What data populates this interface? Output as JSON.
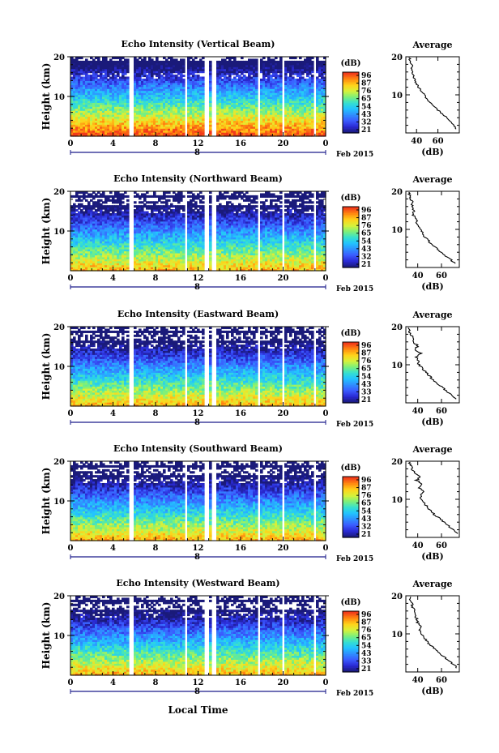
{
  "colors": {
    "colormap": [
      "#1a1a7a",
      "#2a2ad4",
      "#3b5bff",
      "#2f8fff",
      "#22c3ff",
      "#36e0d0",
      "#7cf07a",
      "#d8f23a",
      "#ffd21a",
      "#ff8a10",
      "#f23a1a"
    ],
    "axis": "#000000",
    "timeline": "#1a1a8a",
    "background": "#ffffff"
  },
  "shared": {
    "colorbar_unit": "(dB)",
    "colorbar_ticks_default": [
      "96",
      "87",
      "76",
      "65",
      "54",
      "43",
      "32",
      "21"
    ],
    "colorbar_ticks_east": [
      "96",
      "87",
      "76",
      "65",
      "54",
      "43",
      "33",
      "21"
    ],
    "colorbar_ticks_west": [
      "96",
      "87",
      "76",
      "65",
      "54",
      "43",
      "33",
      "21"
    ],
    "x_ticks": [
      "0",
      "4",
      "8",
      "12",
      "16",
      "20",
      "0"
    ],
    "y_ticks": [
      "20",
      "10"
    ],
    "date_axis_value": "8",
    "date_label": "Feb 2015",
    "x_axis_label": "Local Time",
    "y_axis_label": "Height (km)",
    "avg_title": "Average",
    "avg_xlabel": "(dB)",
    "avg_x_ticks_top": [
      "40",
      "60"
    ],
    "avg_x_ticks_rest": [
      "40",
      "60"
    ]
  },
  "chart_data": [
    {
      "type": "heatmap",
      "title": "Echo Intensity (Vertical Beam)",
      "xlabel": "",
      "ylabel": "Height (km)",
      "x_range_hours": [
        0,
        24
      ],
      "y_range_km": [
        0,
        20
      ],
      "colorbar": {
        "label": "(dB)",
        "ticks": [
          96,
          87,
          76,
          65,
          54,
          43,
          32,
          21
        ]
      },
      "data_gaps_hours": [
        5.5,
        5.9,
        10.7,
        10.9,
        12.6,
        13.0,
        13.3,
        13.6,
        17.6,
        17.9,
        19.9,
        20.2,
        22.8,
        23.0
      ],
      "average_profile": {
        "title": "Average",
        "xlabel": "(dB)",
        "x_range": [
          30,
          80
        ],
        "height_km": [
          1,
          2,
          3,
          4,
          5,
          6,
          7,
          8,
          9,
          10,
          11,
          12,
          13,
          14,
          15,
          16,
          17,
          18,
          19,
          20
        ],
        "db": [
          78,
          75,
          72,
          68,
          64,
          60,
          57,
          53,
          50,
          47,
          45,
          42,
          40,
          38,
          37,
          36,
          35,
          36,
          34,
          33
        ]
      }
    },
    {
      "type": "heatmap",
      "title": "Echo Intensity (Northward Beam)",
      "xlabel": "",
      "ylabel": "Height (km)",
      "x_range_hours": [
        0,
        24
      ],
      "y_range_km": [
        0,
        20
      ],
      "colorbar": {
        "label": "(dB)",
        "ticks": [
          96,
          87,
          76,
          65,
          54,
          43,
          32,
          21
        ]
      },
      "data_gaps_hours": [
        5.5,
        5.9,
        10.7,
        10.9,
        12.6,
        13.0,
        13.3,
        13.6,
        17.6,
        17.9,
        19.9,
        20.2,
        22.8,
        23.0
      ],
      "average_profile": {
        "title": "Average",
        "xlabel": "(dB)",
        "x_range": [
          30,
          75
        ],
        "height_km": [
          1,
          2,
          3,
          4,
          5,
          6,
          7,
          8,
          9,
          10,
          11,
          12,
          13,
          14,
          15,
          16,
          17,
          18,
          19,
          20
        ],
        "db": [
          72,
          68,
          64,
          60,
          56,
          52,
          49,
          46,
          44,
          42,
          40,
          39,
          38,
          36,
          37,
          35,
          36,
          34,
          33,
          32
        ]
      }
    },
    {
      "type": "heatmap",
      "title": "Echo Intensity (Eastward Beam)",
      "xlabel": "",
      "ylabel": "Height (km)",
      "x_range_hours": [
        0,
        24
      ],
      "y_range_km": [
        0,
        20
      ],
      "colorbar": {
        "label": "(dB)",
        "ticks": [
          96,
          87,
          76,
          65,
          54,
          43,
          33,
          21
        ]
      },
      "data_gaps_hours": [
        5.5,
        5.9,
        10.7,
        10.9,
        12.6,
        13.0,
        13.3,
        13.6,
        17.6,
        17.9,
        19.9,
        20.2,
        22.8,
        23.0
      ],
      "average_profile": {
        "title": "Average",
        "xlabel": "(dB)",
        "x_range": [
          30,
          75
        ],
        "height_km": [
          1,
          2,
          3,
          4,
          5,
          6,
          7,
          8,
          9,
          10,
          11,
          12,
          13,
          14,
          15,
          16,
          17,
          18,
          19,
          20
        ],
        "db": [
          73,
          69,
          65,
          61,
          57,
          53,
          50,
          47,
          44,
          41,
          40,
          39,
          43,
          38,
          40,
          36,
          37,
          34,
          33,
          32
        ]
      }
    },
    {
      "type": "heatmap",
      "title": "Echo Intensity (Southward Beam)",
      "xlabel": "",
      "ylabel": "Height (km)",
      "x_range_hours": [
        0,
        24
      ],
      "y_range_km": [
        0,
        20
      ],
      "colorbar": {
        "label": "(dB)",
        "ticks": [
          96,
          87,
          76,
          65,
          54,
          43,
          32,
          21
        ]
      },
      "data_gaps_hours": [
        5.5,
        5.9,
        10.7,
        10.9,
        12.6,
        13.0,
        13.3,
        13.6,
        17.6,
        17.9,
        19.9,
        20.2,
        22.8,
        23.0
      ],
      "average_profile": {
        "title": "Average",
        "xlabel": "(dB)",
        "x_range": [
          30,
          75
        ],
        "height_km": [
          1,
          2,
          3,
          4,
          5,
          6,
          7,
          8,
          9,
          10,
          11,
          12,
          13,
          14,
          15,
          16,
          17,
          18,
          19,
          20
        ],
        "db": [
          73,
          70,
          66,
          62,
          58,
          54,
          51,
          48,
          45,
          43,
          42,
          45,
          41,
          44,
          39,
          42,
          37,
          35,
          34,
          33
        ]
      }
    },
    {
      "type": "heatmap",
      "title": "Echo Intensity (Westward Beam)",
      "xlabel": "Local Time",
      "ylabel": "Height (km)",
      "x_range_hours": [
        0,
        24
      ],
      "y_range_km": [
        0,
        20
      ],
      "colorbar": {
        "label": "(dB)",
        "ticks": [
          96,
          87,
          76,
          65,
          54,
          43,
          33,
          21
        ]
      },
      "data_gaps_hours": [
        5.5,
        5.9,
        10.7,
        10.9,
        12.6,
        13.0,
        13.3,
        13.6,
        17.6,
        17.9,
        19.9,
        20.2,
        22.8,
        23.0
      ],
      "average_profile": {
        "title": "Average",
        "xlabel": "(dB)",
        "x_range": [
          30,
          75
        ],
        "height_km": [
          1,
          2,
          3,
          4,
          5,
          6,
          7,
          8,
          9,
          10,
          11,
          12,
          13,
          14,
          15,
          16,
          17,
          18,
          19,
          20
        ],
        "db": [
          73,
          70,
          66,
          62,
          58,
          54,
          51,
          48,
          45,
          43,
          41,
          43,
          40,
          39,
          38,
          37,
          36,
          35,
          34,
          33
        ]
      }
    }
  ]
}
